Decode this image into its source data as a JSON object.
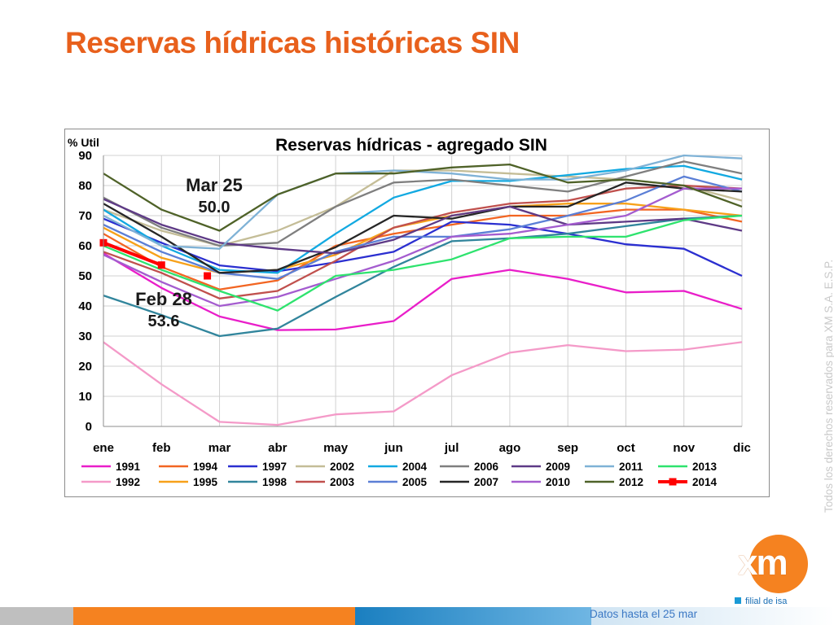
{
  "slide": {
    "title": "Reservas hídricas históricas SIN",
    "side_note": "Todos los derechos reservados para XM S.A. E.S.P.",
    "footer_note": "Datos hasta el 25 mar",
    "logo_text": "xm",
    "logo_sub": "filial de isa",
    "colors": {
      "title": "#e8601c",
      "logo_orange": "#f58220",
      "logo_blue": "#1a9ad6",
      "bar_orange": "#f58220",
      "bar_blue": "#1a7fc0",
      "bar_gray": "#bfbfbf"
    }
  },
  "chart_data": {
    "type": "line",
    "title": "Reservas hídricas - agregado SIN",
    "ylabel": "% Util",
    "xlabel": "",
    "categories": [
      "ene",
      "feb",
      "mar",
      "abr",
      "may",
      "jun",
      "jul",
      "ago",
      "sep",
      "oct",
      "nov",
      "dic"
    ],
    "ylim": [
      0,
      90
    ],
    "yticks": [
      0,
      10,
      20,
      30,
      40,
      50,
      60,
      70,
      80,
      90
    ],
    "grid": true,
    "legend_position": "bottom",
    "series": [
      {
        "name": "1991",
        "color": "#e91ec9",
        "values": [
          57.5,
          46,
          36.5,
          32,
          32.2,
          35,
          49,
          52,
          49,
          44.5,
          45,
          39
        ]
      },
      {
        "name": "1992",
        "color": "#f49ac8",
        "values": [
          28,
          14,
          1.5,
          0.5,
          4,
          5,
          17,
          24.5,
          27,
          25,
          25.5,
          28
        ]
      },
      {
        "name": "1994",
        "color": "#f26522",
        "values": [
          64,
          53,
          45.5,
          48.5,
          60,
          64,
          67,
          70,
          70,
          72,
          72,
          68
        ]
      },
      {
        "name": "1995",
        "color": "#f7a11a",
        "values": [
          66,
          56,
          51,
          52,
          57,
          66,
          70,
          73,
          74,
          74,
          72,
          70
        ]
      },
      {
        "name": "1997",
        "color": "#2b2fd0",
        "values": [
          69,
          61,
          53.5,
          51.5,
          54.5,
          58,
          68,
          67,
          64,
          60.5,
          59,
          50
        ]
      },
      {
        "name": "1998",
        "color": "#31859c",
        "values": [
          43.5,
          37,
          30,
          32.5,
          43,
          53,
          61.5,
          62.5,
          64,
          66.5,
          69,
          70
        ]
      },
      {
        "name": "2002",
        "color": "#c4bd97",
        "values": [
          72,
          65,
          60,
          65,
          73,
          85,
          85,
          84,
          83,
          82,
          80,
          75
        ]
      },
      {
        "name": "2003",
        "color": "#c0504d",
        "values": [
          58,
          51,
          42.5,
          45,
          55,
          66,
          71,
          74,
          75,
          79,
          80,
          79
        ]
      },
      {
        "name": "2004",
        "color": "#12a9e1",
        "values": [
          72,
          60,
          52,
          51,
          64,
          76,
          81.5,
          81.5,
          83.5,
          85.5,
          86.5,
          82
        ]
      },
      {
        "name": "2005",
        "color": "#5b7fd6",
        "values": [
          67,
          58,
          51,
          49,
          58,
          63,
          63,
          65.5,
          70,
          75,
          83,
          78
        ]
      },
      {
        "name": "2006",
        "color": "#7f7f7f",
        "values": [
          76,
          66,
          60,
          61,
          73,
          81,
          82,
          80,
          78,
          83,
          88,
          84
        ]
      },
      {
        "name": "2007",
        "color": "#262626",
        "values": [
          74,
          63,
          51,
          52,
          59.5,
          70,
          69,
          73,
          73,
          81,
          79,
          78
        ]
      },
      {
        "name": "2009",
        "color": "#5e3a86",
        "values": [
          75.5,
          67,
          61,
          59,
          57.5,
          62,
          70,
          73,
          67,
          68,
          69,
          65
        ]
      },
      {
        "name": "2010",
        "color": "#a45ccf",
        "values": [
          57,
          48,
          40,
          43,
          49,
          55,
          63,
          64,
          67,
          70,
          79,
          79
        ]
      },
      {
        "name": "2011",
        "color": "#7fb2d6",
        "values": [
          70,
          60,
          59,
          77,
          84,
          85,
          84,
          82,
          82,
          85,
          90,
          89
        ]
      },
      {
        "name": "2012",
        "color": "#4f6228",
        "values": [
          84,
          72,
          65,
          77,
          84,
          84,
          86,
          87,
          81,
          82,
          80,
          73
        ]
      },
      {
        "name": "2013",
        "color": "#2ee36e",
        "values": [
          60,
          52,
          45,
          38.5,
          50,
          52,
          55.5,
          62.5,
          63,
          63,
          68.5,
          70
        ]
      },
      {
        "name": "2014",
        "color": "#ff0000",
        "values": [
          61,
          53.6,
          50
        ],
        "x": [
          0,
          1,
          1.79
        ],
        "markers_only_last": true
      }
    ],
    "annotations": [
      {
        "label": "Mar 25",
        "value": "50.0"
      },
      {
        "label": "Feb 28",
        "value": "53.6"
      }
    ]
  }
}
